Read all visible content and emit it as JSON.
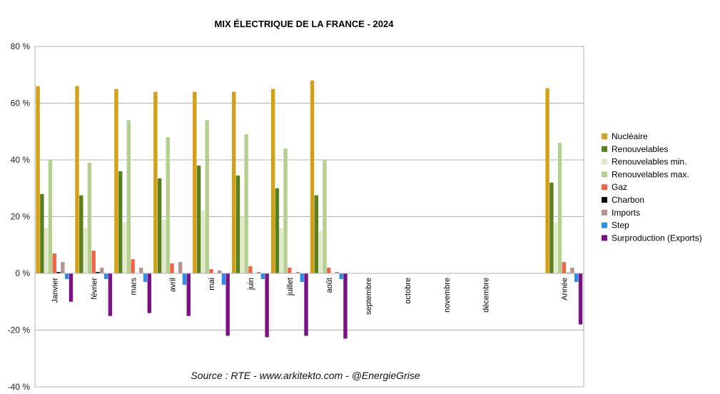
{
  "chart_data": {
    "type": "bar",
    "title": "MIX ÉLECTRIQUE DE LA FRANCE - 2024",
    "source": "Source : RTE - www.arkitekto.com - @EnergieGrise",
    "categories": [
      "Janvier",
      "février",
      "mars",
      "avril",
      "mai",
      "juin",
      "juillet",
      "août",
      "septembre",
      "octobre",
      "novembre",
      "décembre",
      "",
      "Année"
    ],
    "ylim": [
      -40,
      80
    ],
    "yticks": [
      80,
      60,
      40,
      20,
      0,
      -20,
      -40
    ],
    "ytick_labels": [
      "80 %",
      "60 %",
      "40 %",
      "20 %",
      "0 %",
      "-20 %",
      "-40 %"
    ],
    "grid": true,
    "legend_position": "right",
    "series": [
      {
        "name": "Nucléaire",
        "color": "#D4A017",
        "values": [
          66,
          66,
          65,
          64,
          64,
          64,
          65,
          68,
          null,
          null,
          null,
          null,
          null,
          65.3
        ]
      },
      {
        "name": "Renouvelables",
        "color": "#5A7F1E",
        "values": [
          28,
          27.5,
          36,
          33.5,
          38,
          34.5,
          30,
          27.5,
          null,
          null,
          null,
          null,
          null,
          32
        ]
      },
      {
        "name": "Renouvelables min.",
        "color": "#E1EBCB",
        "values": [
          16,
          16,
          18,
          19,
          22,
          20,
          16,
          15,
          null,
          null,
          null,
          null,
          null,
          18
        ]
      },
      {
        "name": "Renouvelables max.",
        "color": "#B5CF8E",
        "values": [
          40,
          39,
          54,
          48,
          54,
          49,
          44,
          40,
          null,
          null,
          null,
          null,
          null,
          46
        ]
      },
      {
        "name": "Gaz",
        "color": "#F0644A",
        "values": [
          7,
          8,
          5,
          3.5,
          1.5,
          2.5,
          2,
          2,
          null,
          null,
          null,
          null,
          null,
          4
        ]
      },
      {
        "name": "Charbon",
        "color": "#000000",
        "values": [
          0.5,
          0.5,
          0,
          0,
          0,
          0,
          0,
          0,
          null,
          null,
          null,
          null,
          null,
          0.2
        ]
      },
      {
        "name": "Imports",
        "color": "#B8938F",
        "values": [
          4,
          2,
          2,
          4,
          1,
          0.5,
          0.5,
          0.5,
          null,
          null,
          null,
          null,
          null,
          2
        ]
      },
      {
        "name": "Step",
        "color": "#2E8DE8",
        "values": [
          -2,
          -2,
          -3,
          -4,
          -4,
          -2,
          -3,
          -2,
          null,
          null,
          null,
          null,
          null,
          -3
        ]
      },
      {
        "name": "Surproduction (Exports)",
        "color": "#7B1283",
        "values": [
          -10,
          -15,
          -14,
          -15,
          -22,
          -22.5,
          -22,
          -23,
          null,
          null,
          null,
          null,
          null,
          -18
        ]
      }
    ]
  }
}
